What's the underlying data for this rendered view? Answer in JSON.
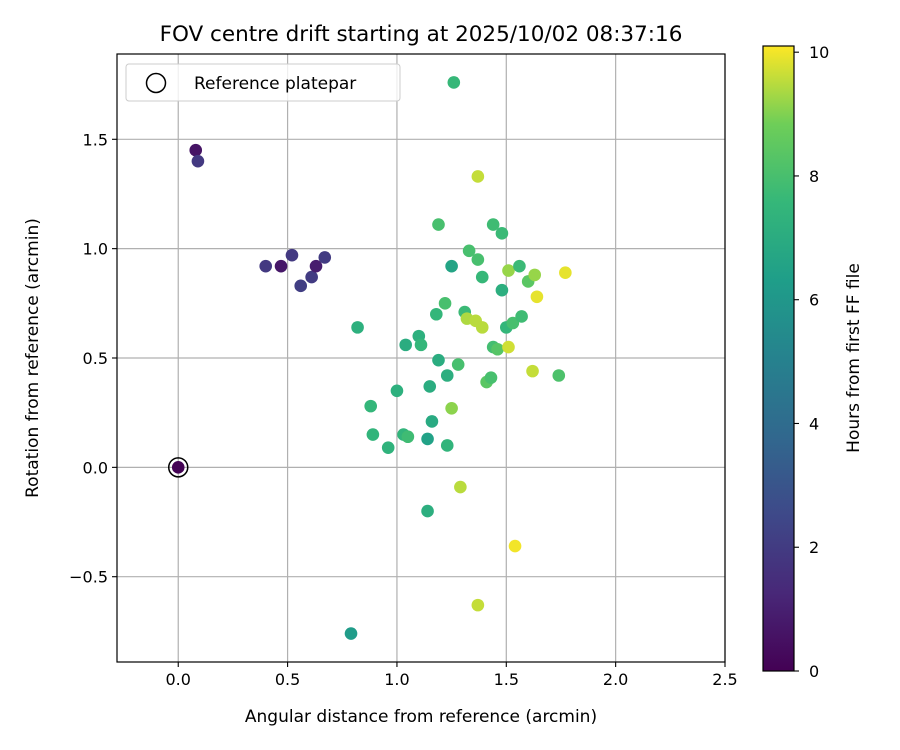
{
  "chart_data": {
    "type": "scatter",
    "title": "FOV centre drift starting at 2025/10/02 08:37:16",
    "xlabel": "Angular distance from reference (arcmin)",
    "ylabel": "Rotation from reference (arcmin)",
    "xlim": [
      -0.28,
      2.5
    ],
    "ylim": [
      -0.89,
      1.89
    ],
    "x_ticks": [
      0.0,
      0.5,
      1.0,
      1.5,
      2.0,
      2.5
    ],
    "x_tick_labels": [
      "0.0",
      "0.5",
      "1.0",
      "1.5",
      "2.0",
      "2.5"
    ],
    "y_ticks": [
      -0.5,
      0.0,
      0.5,
      1.0,
      1.5
    ],
    "y_tick_labels": [
      "−0.5",
      "0.0",
      "0.5",
      "1.0",
      "1.5"
    ],
    "grid": true,
    "legend": {
      "position": "top-left",
      "label": "Reference platepar"
    },
    "reference_point": {
      "x": 0.0,
      "y": 0.0
    },
    "colorbar": {
      "label": "Hours from first FF file",
      "min": 0,
      "max": 10.1,
      "ticks": [
        0,
        2,
        4,
        6,
        8,
        10
      ],
      "tick_labels": [
        "0",
        "2",
        "4",
        "6",
        "8",
        "10"
      ],
      "colormap": "viridis"
    },
    "points": [
      {
        "x": 0.0,
        "y": 0.0,
        "h": 0.05
      },
      {
        "x": 0.08,
        "y": 1.45,
        "h": 0.6
      },
      {
        "x": 0.09,
        "y": 1.4,
        "h": 1.9
      },
      {
        "x": 0.4,
        "y": 0.92,
        "h": 1.9
      },
      {
        "x": 0.47,
        "y": 0.92,
        "h": 0.7
      },
      {
        "x": 0.52,
        "y": 0.97,
        "h": 1.9
      },
      {
        "x": 0.56,
        "y": 0.83,
        "h": 2.1
      },
      {
        "x": 0.61,
        "y": 0.87,
        "h": 2.0
      },
      {
        "x": 0.63,
        "y": 0.92,
        "h": 0.9
      },
      {
        "x": 0.67,
        "y": 0.96,
        "h": 2.0
      },
      {
        "x": 0.79,
        "y": -0.76,
        "h": 6.2
      },
      {
        "x": 0.82,
        "y": 0.64,
        "h": 7.2
      },
      {
        "x": 0.88,
        "y": 0.28,
        "h": 7.5
      },
      {
        "x": 0.89,
        "y": 0.15,
        "h": 7.4
      },
      {
        "x": 0.96,
        "y": 0.09,
        "h": 7.3
      },
      {
        "x": 1.0,
        "y": 0.35,
        "h": 7.2
      },
      {
        "x": 1.03,
        "y": 0.15,
        "h": 7.4
      },
      {
        "x": 1.04,
        "y": 0.56,
        "h": 7.0
      },
      {
        "x": 1.05,
        "y": 0.14,
        "h": 7.8
      },
      {
        "x": 1.1,
        "y": 0.6,
        "h": 7.2
      },
      {
        "x": 1.11,
        "y": 0.56,
        "h": 7.5
      },
      {
        "x": 1.14,
        "y": 0.13,
        "h": 6.5
      },
      {
        "x": 1.14,
        "y": -0.2,
        "h": 7.1
      },
      {
        "x": 1.15,
        "y": 0.37,
        "h": 7.0
      },
      {
        "x": 1.16,
        "y": 0.21,
        "h": 6.9
      },
      {
        "x": 1.18,
        "y": 0.7,
        "h": 7.5
      },
      {
        "x": 1.19,
        "y": 1.11,
        "h": 8.0
      },
      {
        "x": 1.19,
        "y": 0.49,
        "h": 7.0
      },
      {
        "x": 1.22,
        "y": 0.75,
        "h": 8.0
      },
      {
        "x": 1.23,
        "y": 0.42,
        "h": 7.1
      },
      {
        "x": 1.23,
        "y": 0.1,
        "h": 7.4
      },
      {
        "x": 1.25,
        "y": 0.27,
        "h": 9.1
      },
      {
        "x": 1.25,
        "y": 0.92,
        "h": 6.6
      },
      {
        "x": 1.26,
        "y": 1.76,
        "h": 7.6
      },
      {
        "x": 1.28,
        "y": 0.47,
        "h": 8.0
      },
      {
        "x": 1.29,
        "y": -0.09,
        "h": 9.5
      },
      {
        "x": 1.31,
        "y": 0.71,
        "h": 7.7
      },
      {
        "x": 1.32,
        "y": 0.68,
        "h": 9.4
      },
      {
        "x": 1.33,
        "y": 0.99,
        "h": 8.0
      },
      {
        "x": 1.36,
        "y": 0.67,
        "h": 9.5
      },
      {
        "x": 1.37,
        "y": 0.95,
        "h": 8.0
      },
      {
        "x": 1.37,
        "y": 1.33,
        "h": 9.6
      },
      {
        "x": 1.37,
        "y": -0.63,
        "h": 9.6
      },
      {
        "x": 1.39,
        "y": 0.64,
        "h": 9.5
      },
      {
        "x": 1.39,
        "y": 0.87,
        "h": 7.6
      },
      {
        "x": 1.41,
        "y": 0.39,
        "h": 8.4
      },
      {
        "x": 1.43,
        "y": 0.41,
        "h": 8.0
      },
      {
        "x": 1.44,
        "y": 0.55,
        "h": 7.9
      },
      {
        "x": 1.44,
        "y": 1.11,
        "h": 7.8
      },
      {
        "x": 1.46,
        "y": 0.54,
        "h": 8.3
      },
      {
        "x": 1.48,
        "y": 1.07,
        "h": 7.7
      },
      {
        "x": 1.48,
        "y": 0.81,
        "h": 7.1
      },
      {
        "x": 1.5,
        "y": 0.64,
        "h": 7.5
      },
      {
        "x": 1.51,
        "y": 0.55,
        "h": 9.7
      },
      {
        "x": 1.51,
        "y": 0.9,
        "h": 9.2
      },
      {
        "x": 1.53,
        "y": 0.66,
        "h": 8.0
      },
      {
        "x": 1.54,
        "y": -0.36,
        "h": 10.0
      },
      {
        "x": 1.56,
        "y": 0.92,
        "h": 7.7
      },
      {
        "x": 1.57,
        "y": 0.69,
        "h": 7.8
      },
      {
        "x": 1.6,
        "y": 0.85,
        "h": 8.4
      },
      {
        "x": 1.62,
        "y": 0.44,
        "h": 9.6
      },
      {
        "x": 1.63,
        "y": 0.88,
        "h": 9.2
      },
      {
        "x": 1.64,
        "y": 0.78,
        "h": 9.9
      },
      {
        "x": 1.74,
        "y": 0.42,
        "h": 8.1
      },
      {
        "x": 1.77,
        "y": 0.89,
        "h": 9.9
      }
    ]
  }
}
